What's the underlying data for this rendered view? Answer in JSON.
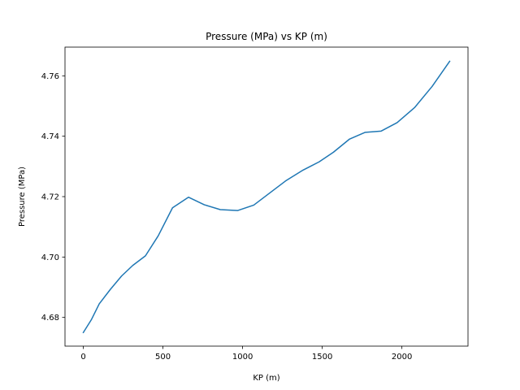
{
  "chart_data": {
    "type": "line",
    "title": "Pressure (MPa) vs KP (m)",
    "xlabel": "KP (m)",
    "ylabel": "Pressure (MPa)",
    "xlim": [
      -115,
      2415
    ],
    "ylim": [
      4.6705,
      4.7695
    ],
    "xticks": [
      0,
      500,
      1000,
      1500,
      2000
    ],
    "yticks": [
      4.68,
      4.7,
      4.72,
      4.74,
      4.76
    ],
    "xtick_labels": [
      "0",
      "500",
      "1000",
      "1500",
      "2000"
    ],
    "ytick_labels": [
      "4.68",
      "4.70",
      "4.72",
      "4.74",
      "4.76"
    ],
    "grid": false,
    "series": [
      {
        "color": "#1f77b4",
        "x": [
          0,
          50,
          100,
          170,
          240,
          310,
          390,
          470,
          560,
          660,
          760,
          860,
          970,
          1070,
          1170,
          1270,
          1380,
          1480,
          1570,
          1670,
          1770,
          1870,
          1970,
          2080,
          2190,
          2300
        ],
        "y": [
          4.675,
          4.6792,
          4.6845,
          4.6893,
          4.6937,
          4.6972,
          4.7004,
          4.707,
          4.7163,
          4.7198,
          4.7173,
          4.7157,
          4.7154,
          4.7172,
          4.7212,
          4.7252,
          4.7288,
          4.7315,
          4.7347,
          4.739,
          4.7413,
          4.7417,
          4.7445,
          4.7495,
          4.7565,
          4.7648
        ]
      }
    ]
  }
}
